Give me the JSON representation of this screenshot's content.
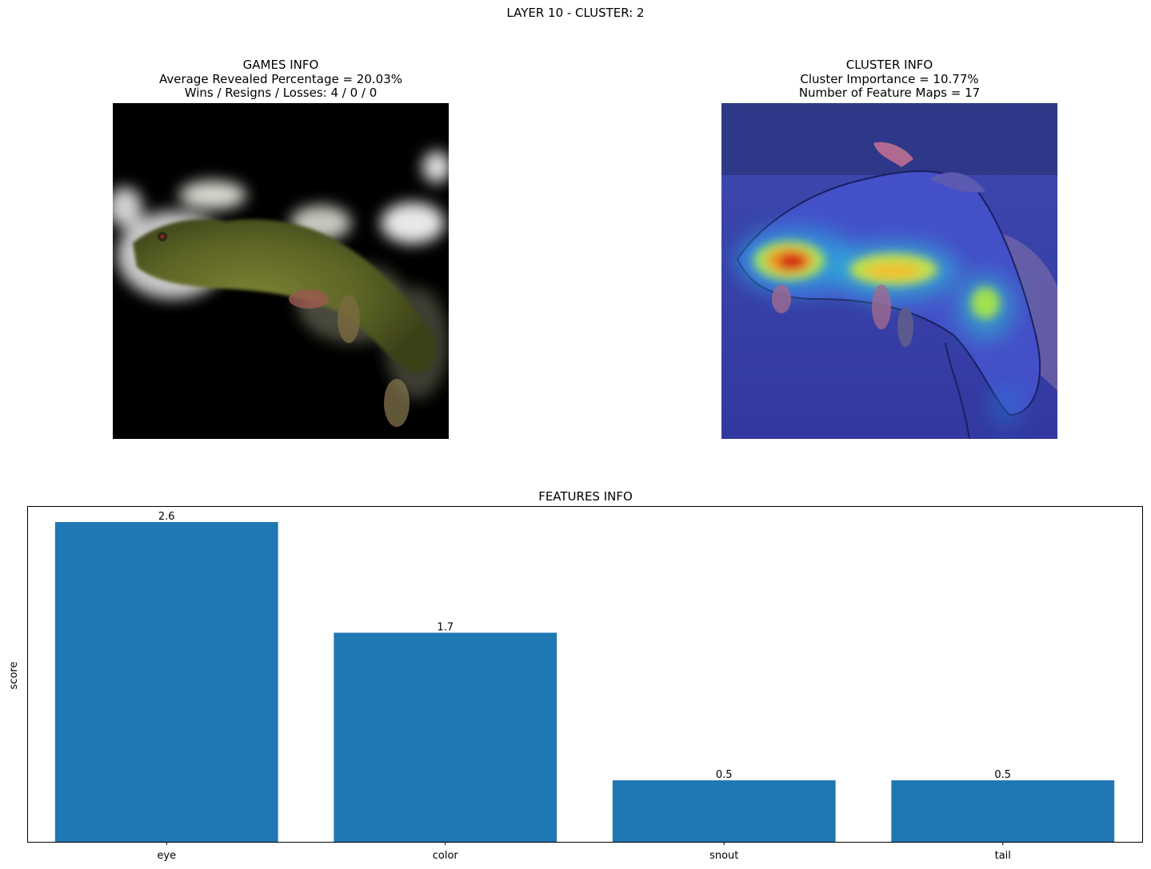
{
  "suptitle": "LAYER 10 - CLUSTER: 2",
  "games_info": {
    "title": "GAMES INFO",
    "line1": "Average Revealed Percentage = 20.03%",
    "line2": "Wins / Resigns / Losses: 4 / 0 / 0"
  },
  "cluster_info": {
    "title": "CLUSTER INFO",
    "line1": "Cluster Importance = 10.77%",
    "line2": "Number of Feature Maps = 17"
  },
  "chart_data": {
    "type": "bar",
    "title": "FEATURES INFO",
    "xlabel": "",
    "ylabel": "score",
    "categories": [
      "eye",
      "color",
      "snout",
      "tail"
    ],
    "values": [
      2.6,
      1.7,
      0.5,
      0.5
    ],
    "value_labels": [
      "2.6",
      "1.7",
      "0.5",
      "0.5"
    ],
    "ylim": [
      0,
      2.73
    ],
    "y_ticks_visible": false,
    "grid": false,
    "bar_color": "#1f77b4"
  }
}
